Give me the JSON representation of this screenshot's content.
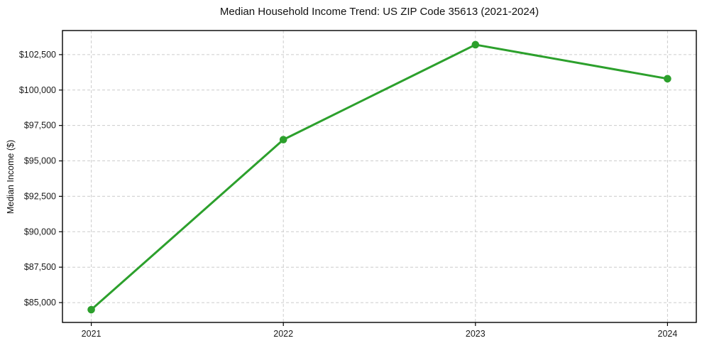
{
  "figure": {
    "title": "Median Household Income Trend: US ZIP Code 35613 (2021-2024)"
  },
  "chart_data": {
    "type": "line",
    "title": "Median Household Income Trend: US ZIP Code 35613 (2021-2024)",
    "xlabel": "",
    "ylabel": "Median Income ($)",
    "x": [
      2021,
      2022,
      2023,
      2024
    ],
    "xtick_labels": [
      "2021",
      "2022",
      "2023",
      "2024"
    ],
    "series": [
      {
        "name": "Median Household Income",
        "values": [
          84500,
          96500,
          103200,
          100800
        ]
      }
    ],
    "yticks": [
      85000,
      87500,
      90000,
      92500,
      95000,
      97500,
      100000,
      102500
    ],
    "ytick_labels": [
      "$85,000",
      "$87,500",
      "$90,000",
      "$92,500",
      "$95,000",
      "$97,500",
      "$100,000",
      "$102,500"
    ],
    "ylim": [
      83600,
      104200
    ],
    "xlim": [
      2020.85,
      2024.15
    ],
    "grid": true,
    "grid_style": "dashed",
    "legend": "none",
    "colors": {
      "line": "#2ca02c",
      "marker": "#2ca02c",
      "grid": "#cccccc",
      "axis": "#000000",
      "text": "#1a1a1a",
      "background": "#ffffff"
    }
  }
}
